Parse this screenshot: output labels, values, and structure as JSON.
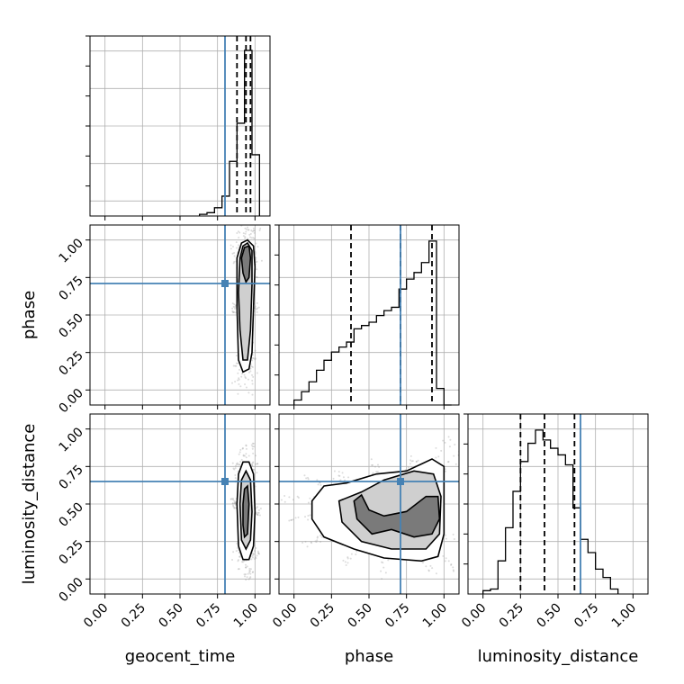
{
  "chart_data": {
    "type": "corner",
    "parameters": [
      "geocent_time",
      "phase",
      "luminosity_distance"
    ],
    "axis_range": [
      -0.1,
      1.1
    ],
    "tick_labels": [
      "0.00",
      "0.25",
      "0.50",
      "0.75",
      "1.00"
    ],
    "ticks": [
      0,
      0.25,
      0.5,
      0.75,
      1.0
    ],
    "grid": true,
    "colors": {
      "truth": "#4682b4",
      "lines": "#000000"
    },
    "truths": {
      "geocent_time": 0.8,
      "phase": 0.71,
      "luminosity_distance": 0.65
    },
    "quantiles": {
      "geocent_time": [
        0.88,
        0.94,
        0.97
      ],
      "phase": [
        0.38,
        0.71,
        0.92
      ],
      "luminosity_distance": [
        0.25,
        0.41,
        0.61
      ]
    },
    "histograms": {
      "geocent_time": {
        "edges": [
          0.63,
          0.68,
          0.73,
          0.78,
          0.83,
          0.88,
          0.93,
          0.98,
          1.03
        ],
        "counts": [
          0.01,
          0.02,
          0.05,
          0.12,
          0.33,
          0.56,
          1.0,
          0.37
        ]
      },
      "phase": {
        "edges": [
          0.0,
          0.05,
          0.1,
          0.15,
          0.2,
          0.25,
          0.3,
          0.35,
          0.4,
          0.45,
          0.5,
          0.55,
          0.6,
          0.65,
          0.7,
          0.75,
          0.8,
          0.85,
          0.9,
          0.95,
          1.0,
          1.05
        ],
        "counts": [
          0.03,
          0.08,
          0.14,
          0.21,
          0.27,
          0.32,
          0.35,
          0.38,
          0.46,
          0.48,
          0.5,
          0.54,
          0.57,
          0.59,
          0.7,
          0.76,
          0.8,
          0.86,
          0.99,
          0.1,
          0.0
        ]
      },
      "luminosity_distance": {
        "edges": [
          0.0,
          0.05,
          0.1,
          0.15,
          0.2,
          0.25,
          0.3,
          0.35,
          0.4,
          0.45,
          0.5,
          0.55,
          0.6,
          0.65,
          0.7,
          0.75,
          0.8,
          0.85,
          0.9
        ],
        "counts": [
          0.02,
          0.03,
          0.2,
          0.4,
          0.62,
          0.8,
          0.91,
          0.99,
          0.93,
          0.88,
          0.84,
          0.78,
          0.52,
          0.33,
          0.25,
          0.15,
          0.1,
          0.03
        ]
      }
    },
    "contours_2d": {
      "phase_vs_geocent_time": {
        "levels": [
          [
            [
              0.88,
              0.88
            ],
            [
              0.91,
              0.98
            ],
            [
              0.95,
              1.0
            ],
            [
              0.99,
              0.96
            ],
            [
              1.0,
              0.82
            ],
            [
              0.99,
              0.55
            ],
            [
              0.98,
              0.25
            ],
            [
              0.96,
              0.14
            ],
            [
              0.92,
              0.12
            ],
            [
              0.89,
              0.2
            ],
            [
              0.88,
              0.55
            ]
          ],
          [
            [
              0.9,
              0.88
            ],
            [
              0.92,
              0.96
            ],
            [
              0.95,
              0.98
            ],
            [
              0.98,
              0.93
            ],
            [
              0.98,
              0.7
            ],
            [
              0.97,
              0.4
            ],
            [
              0.95,
              0.2
            ],
            [
              0.92,
              0.2
            ],
            [
              0.9,
              0.4
            ],
            [
              0.89,
              0.65
            ]
          ],
          [
            [
              0.91,
              0.88
            ],
            [
              0.93,
              0.95
            ],
            [
              0.96,
              0.96
            ],
            [
              0.97,
              0.88
            ],
            [
              0.96,
              0.75
            ],
            [
              0.94,
              0.72
            ],
            [
              0.92,
              0.78
            ]
          ]
        ]
      },
      "luminosity_distance_vs_geocent_time": {
        "levels": [
          [
            [
              0.88,
              0.5
            ],
            [
              0.89,
              0.7
            ],
            [
              0.92,
              0.78
            ],
            [
              0.96,
              0.78
            ],
            [
              0.99,
              0.7
            ],
            [
              1.0,
              0.45
            ],
            [
              0.99,
              0.22
            ],
            [
              0.96,
              0.13
            ],
            [
              0.92,
              0.13
            ],
            [
              0.89,
              0.22
            ]
          ],
          [
            [
              0.9,
              0.5
            ],
            [
              0.91,
              0.66
            ],
            [
              0.94,
              0.72
            ],
            [
              0.97,
              0.66
            ],
            [
              0.98,
              0.45
            ],
            [
              0.97,
              0.26
            ],
            [
              0.94,
              0.2
            ],
            [
              0.91,
              0.26
            ]
          ],
          [
            [
              0.92,
              0.5
            ],
            [
              0.93,
              0.6
            ],
            [
              0.95,
              0.62
            ],
            [
              0.96,
              0.5
            ],
            [
              0.95,
              0.3
            ],
            [
              0.93,
              0.28
            ],
            [
              0.92,
              0.36
            ]
          ]
        ]
      },
      "luminosity_distance_vs_phase": {
        "levels": [
          [
            [
              0.12,
              0.52
            ],
            [
              0.2,
              0.62
            ],
            [
              0.35,
              0.64
            ],
            [
              0.55,
              0.7
            ],
            [
              0.75,
              0.72
            ],
            [
              0.92,
              0.8
            ],
            [
              1.0,
              0.75
            ],
            [
              1.0,
              0.3
            ],
            [
              0.96,
              0.15
            ],
            [
              0.85,
              0.12
            ],
            [
              0.6,
              0.14
            ],
            [
              0.4,
              0.2
            ],
            [
              0.2,
              0.28
            ],
            [
              0.12,
              0.4
            ]
          ],
          [
            [
              0.3,
              0.52
            ],
            [
              0.45,
              0.58
            ],
            [
              0.6,
              0.66
            ],
            [
              0.8,
              0.72
            ],
            [
              0.93,
              0.7
            ],
            [
              0.98,
              0.55
            ],
            [
              0.97,
              0.3
            ],
            [
              0.88,
              0.2
            ],
            [
              0.65,
              0.2
            ],
            [
              0.45,
              0.25
            ],
            [
              0.32,
              0.38
            ]
          ],
          [
            [
              0.42,
              0.4
            ],
            [
              0.4,
              0.52
            ],
            [
              0.45,
              0.56
            ],
            [
              0.5,
              0.46
            ],
            [
              0.6,
              0.42
            ],
            [
              0.75,
              0.45
            ],
            [
              0.88,
              0.55
            ],
            [
              0.96,
              0.55
            ],
            [
              0.97,
              0.4
            ],
            [
              0.92,
              0.3
            ],
            [
              0.8,
              0.28
            ],
            [
              0.65,
              0.33
            ],
            [
              0.52,
              0.3
            ]
          ]
        ]
      }
    }
  }
}
